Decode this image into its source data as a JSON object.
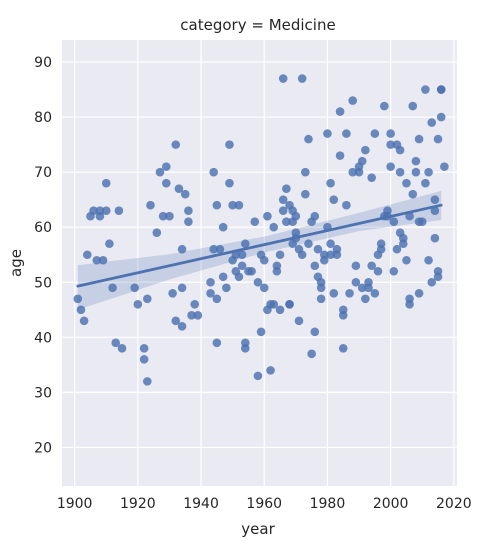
{
  "chart_data": {
    "type": "scatter",
    "title": "category = Medicine",
    "xlabel": "year",
    "ylabel": "age",
    "xlim": [
      1896,
      2021
    ],
    "ylim": [
      13,
      94
    ],
    "xticks": [
      1900,
      1920,
      1940,
      1960,
      1980,
      2000,
      2020
    ],
    "yticks": [
      20,
      30,
      40,
      50,
      60,
      70,
      80,
      90
    ],
    "grid": true,
    "background_color": "#eaeaf2",
    "point_color": "#4c72b0",
    "regression": {
      "x": [
        1901,
        2016
      ],
      "y": [
        49.3,
        64.0
      ],
      "ci_band": {
        "x": [
          1901,
          1930,
          1960,
          1990,
          2016
        ],
        "lower": [
          45.0,
          50.5,
          55.4,
          59.3,
          61.3
        ],
        "upper": [
          53.1,
          55.1,
          58.3,
          62.6,
          66.6
        ]
      }
    },
    "points": [
      [
        1901,
        47
      ],
      [
        1902,
        45
      ],
      [
        1903,
        43
      ],
      [
        1904,
        55
      ],
      [
        1905,
        62
      ],
      [
        1906,
        63
      ],
      [
        1907,
        54
      ],
      [
        1908,
        62
      ],
      [
        1908,
        63
      ],
      [
        1909,
        54
      ],
      [
        1910,
        68
      ],
      [
        1910,
        63
      ],
      [
        1911,
        57
      ],
      [
        1912,
        49
      ],
      [
        1913,
        39
      ],
      [
        1914,
        63
      ],
      [
        1915,
        38
      ],
      [
        1919,
        49
      ],
      [
        1920,
        46
      ],
      [
        1922,
        36
      ],
      [
        1922,
        38
      ],
      [
        1923,
        47
      ],
      [
        1923,
        32
      ],
      [
        1924,
        64
      ],
      [
        1926,
        59
      ],
      [
        1927,
        70
      ],
      [
        1928,
        62
      ],
      [
        1929,
        71
      ],
      [
        1929,
        68
      ],
      [
        1930,
        62
      ],
      [
        1931,
        48
      ],
      [
        1932,
        75
      ],
      [
        1932,
        43
      ],
      [
        1933,
        67
      ],
      [
        1934,
        56
      ],
      [
        1934,
        49
      ],
      [
        1934,
        42
      ],
      [
        1935,
        66
      ],
      [
        1936,
        63
      ],
      [
        1936,
        61
      ],
      [
        1937,
        44
      ],
      [
        1938,
        46
      ],
      [
        1939,
        44
      ],
      [
        1943,
        48
      ],
      [
        1943,
        50
      ],
      [
        1944,
        70
      ],
      [
        1944,
        56
      ],
      [
        1945,
        39
      ],
      [
        1945,
        47
      ],
      [
        1945,
        64
      ],
      [
        1946,
        56
      ],
      [
        1947,
        51
      ],
      [
        1947,
        60
      ],
      [
        1948,
        49
      ],
      [
        1949,
        75
      ],
      [
        1949,
        68
      ],
      [
        1950,
        64
      ],
      [
        1950,
        54
      ],
      [
        1951,
        52
      ],
      [
        1951,
        55
      ],
      [
        1952,
        64
      ],
      [
        1952,
        51
      ],
      [
        1953,
        53
      ],
      [
        1953,
        55
      ],
      [
        1954,
        57
      ],
      [
        1954,
        38
      ],
      [
        1954,
        39
      ],
      [
        1955,
        52
      ],
      [
        1956,
        52
      ],
      [
        1957,
        61
      ],
      [
        1958,
        50
      ],
      [
        1958,
        33
      ],
      [
        1959,
        55
      ],
      [
        1959,
        41
      ],
      [
        1960,
        54
      ],
      [
        1960,
        49
      ],
      [
        1961,
        62
      ],
      [
        1961,
        45
      ],
      [
        1962,
        34
      ],
      [
        1962,
        46
      ],
      [
        1963,
        46
      ],
      [
        1963,
        60
      ],
      [
        1964,
        53
      ],
      [
        1964,
        52
      ],
      [
        1965,
        45
      ],
      [
        1965,
        55
      ],
      [
        1966,
        63
      ],
      [
        1966,
        87
      ],
      [
        1966,
        65
      ],
      [
        1967,
        61
      ],
      [
        1967,
        67
      ],
      [
        1968,
        46
      ],
      [
        1968,
        46
      ],
      [
        1968,
        64
      ],
      [
        1969,
        61
      ],
      [
        1969,
        63
      ],
      [
        1969,
        57
      ],
      [
        1970,
        59
      ],
      [
        1970,
        58
      ],
      [
        1970,
        62
      ],
      [
        1971,
        56
      ],
      [
        1971,
        43
      ],
      [
        1972,
        55
      ],
      [
        1972,
        87
      ],
      [
        1973,
        70
      ],
      [
        1973,
        66
      ],
      [
        1974,
        76
      ],
      [
        1974,
        57
      ],
      [
        1975,
        61
      ],
      [
        1975,
        37
      ],
      [
        1976,
        41
      ],
      [
        1976,
        62
      ],
      [
        1976,
        53
      ],
      [
        1977,
        51
      ],
      [
        1977,
        56
      ],
      [
        1978,
        50
      ],
      [
        1978,
        49
      ],
      [
        1978,
        47
      ],
      [
        1979,
        54
      ],
      [
        1979,
        55
      ],
      [
        1980,
        77
      ],
      [
        1980,
        60
      ],
      [
        1981,
        55
      ],
      [
        1981,
        57
      ],
      [
        1981,
        68
      ],
      [
        1982,
        65
      ],
      [
        1982,
        48
      ],
      [
        1983,
        55
      ],
      [
        1983,
        56
      ],
      [
        1984,
        73
      ],
      [
        1984,
        81
      ],
      [
        1985,
        45
      ],
      [
        1985,
        44
      ],
      [
        1985,
        38
      ],
      [
        1986,
        64
      ],
      [
        1986,
        77
      ],
      [
        1987,
        48
      ],
      [
        1988,
        70
      ],
      [
        1988,
        83
      ],
      [
        1989,
        53
      ],
      [
        1989,
        50
      ],
      [
        1990,
        71
      ],
      [
        1990,
        70
      ],
      [
        1991,
        49
      ],
      [
        1991,
        72
      ],
      [
        1992,
        47
      ],
      [
        1992,
        74
      ],
      [
        1993,
        50
      ],
      [
        1993,
        49
      ],
      [
        1994,
        53
      ],
      [
        1994,
        69
      ],
      [
        1995,
        48
      ],
      [
        1995,
        77
      ],
      [
        1996,
        52
      ],
      [
        1996,
        55
      ],
      [
        1997,
        56
      ],
      [
        1997,
        57
      ],
      [
        1998,
        62
      ],
      [
        1998,
        82
      ],
      [
        1999,
        63
      ],
      [
        1999,
        62
      ],
      [
        2000,
        71
      ],
      [
        2000,
        75
      ],
      [
        2000,
        77
      ],
      [
        2001,
        61
      ],
      [
        2001,
        52
      ],
      [
        2002,
        56
      ],
      [
        2002,
        75
      ],
      [
        2003,
        70
      ],
      [
        2003,
        59
      ],
      [
        2003,
        74
      ],
      [
        2004,
        57
      ],
      [
        2004,
        58
      ],
      [
        2005,
        54
      ],
      [
        2005,
        68
      ],
      [
        2006,
        46
      ],
      [
        2006,
        47
      ],
      [
        2006,
        62
      ],
      [
        2007,
        66
      ],
      [
        2007,
        82
      ],
      [
        2008,
        72
      ],
      [
        2008,
        70
      ],
      [
        2009,
        76
      ],
      [
        2009,
        61
      ],
      [
        2009,
        48
      ],
      [
        2010,
        61
      ],
      [
        2011,
        85
      ],
      [
        2011,
        68
      ],
      [
        2012,
        70
      ],
      [
        2012,
        54
      ],
      [
        2013,
        79
      ],
      [
        2013,
        50
      ],
      [
        2014,
        58
      ],
      [
        2014,
        65
      ],
      [
        2014,
        63
      ],
      [
        2015,
        51
      ],
      [
        2015,
        52
      ],
      [
        2015,
        76
      ],
      [
        2016,
        80
      ],
      [
        2016,
        85
      ],
      [
        2016,
        85
      ],
      [
        2017,
        71
      ]
    ]
  }
}
